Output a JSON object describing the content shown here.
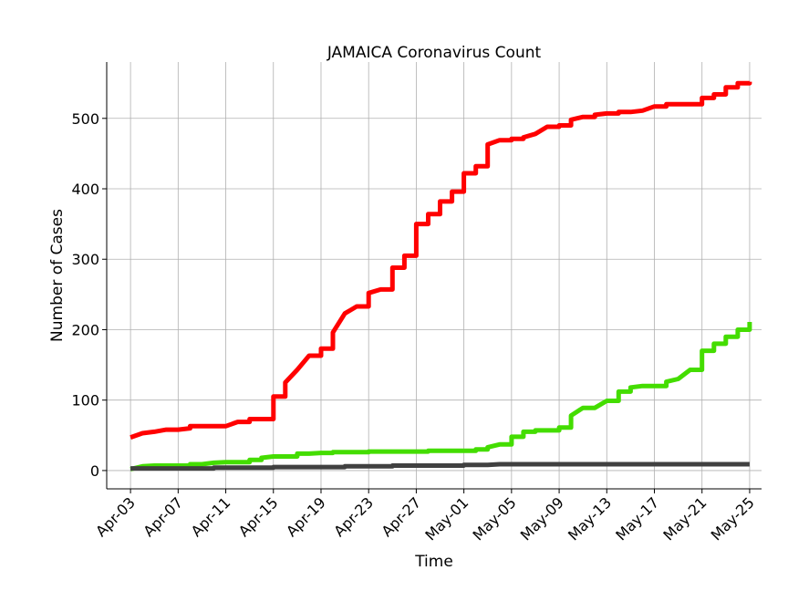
{
  "chart_data": {
    "type": "line",
    "title": "JAMAICA Coronavirus Count",
    "xlabel": "Time",
    "ylabel": "Number of Cases",
    "grid": true,
    "ylim": [
      -26,
      580
    ],
    "yticks": [
      0,
      100,
      200,
      300,
      400,
      500
    ],
    "xlim": [
      "2020-04-01",
      "2020-05-26"
    ],
    "xticks": [
      "2020-04-03",
      "2020-04-07",
      "2020-04-11",
      "2020-04-15",
      "2020-04-19",
      "2020-04-23",
      "2020-04-27",
      "2020-05-01",
      "2020-05-05",
      "2020-05-09",
      "2020-05-13",
      "2020-05-17",
      "2020-05-21",
      "2020-05-25"
    ],
    "xtick_labels": [
      "Apr-03",
      "Apr-07",
      "Apr-11",
      "Apr-15",
      "Apr-19",
      "Apr-23",
      "Apr-27",
      "May-01",
      "May-05",
      "May-09",
      "May-13",
      "May-17",
      "May-21",
      "May-25"
    ],
    "series": [
      {
        "color": "#ff0000",
        "points": [
          [
            "2020-04-03",
            47
          ],
          [
            "2020-04-04",
            53
          ],
          [
            "2020-04-05",
            55
          ],
          [
            "2020-04-06",
            58
          ],
          [
            "2020-04-07",
            58
          ],
          [
            "2020-04-08",
            60
          ],
          [
            "2020-04-08",
            63
          ],
          [
            "2020-04-09",
            63
          ],
          [
            "2020-04-10",
            63
          ],
          [
            "2020-04-11",
            63
          ],
          [
            "2020-04-12",
            69
          ],
          [
            "2020-04-13",
            69
          ],
          [
            "2020-04-13",
            73
          ],
          [
            "2020-04-14",
            73
          ],
          [
            "2020-04-15",
            73
          ],
          [
            "2020-04-15",
            105
          ],
          [
            "2020-04-16",
            105
          ],
          [
            "2020-04-16",
            125
          ],
          [
            "2020-04-17",
            143
          ],
          [
            "2020-04-18",
            163
          ],
          [
            "2020-04-19",
            163
          ],
          [
            "2020-04-19",
            173
          ],
          [
            "2020-04-20",
            173
          ],
          [
            "2020-04-20",
            196
          ],
          [
            "2020-04-21",
            223
          ],
          [
            "2020-04-22",
            233
          ],
          [
            "2020-04-23",
            233
          ],
          [
            "2020-04-23",
            252
          ],
          [
            "2020-04-24",
            257
          ],
          [
            "2020-04-25",
            257
          ],
          [
            "2020-04-25",
            288
          ],
          [
            "2020-04-26",
            288
          ],
          [
            "2020-04-26",
            305
          ],
          [
            "2020-04-27",
            305
          ],
          [
            "2020-04-27",
            350
          ],
          [
            "2020-04-28",
            350
          ],
          [
            "2020-04-28",
            364
          ],
          [
            "2020-04-29",
            364
          ],
          [
            "2020-04-29",
            382
          ],
          [
            "2020-04-30",
            382
          ],
          [
            "2020-04-30",
            396
          ],
          [
            "2020-05-01",
            396
          ],
          [
            "2020-05-01",
            422
          ],
          [
            "2020-05-02",
            422
          ],
          [
            "2020-05-02",
            432
          ],
          [
            "2020-05-03",
            432
          ],
          [
            "2020-05-03",
            463
          ],
          [
            "2020-05-04",
            469
          ],
          [
            "2020-05-05",
            469
          ],
          [
            "2020-05-05",
            471
          ],
          [
            "2020-05-06",
            471
          ],
          [
            "2020-05-06",
            473
          ],
          [
            "2020-05-07",
            478
          ],
          [
            "2020-05-08",
            488
          ],
          [
            "2020-05-09",
            488
          ],
          [
            "2020-05-09",
            490
          ],
          [
            "2020-05-10",
            490
          ],
          [
            "2020-05-10",
            498
          ],
          [
            "2020-05-11",
            502
          ],
          [
            "2020-05-12",
            502
          ],
          [
            "2020-05-12",
            505
          ],
          [
            "2020-05-13",
            507
          ],
          [
            "2020-05-14",
            507
          ],
          [
            "2020-05-14",
            509
          ],
          [
            "2020-05-15",
            509
          ],
          [
            "2020-05-16",
            511
          ],
          [
            "2020-05-17",
            517
          ],
          [
            "2020-05-18",
            517
          ],
          [
            "2020-05-18",
            520
          ],
          [
            "2020-05-19",
            520
          ],
          [
            "2020-05-20",
            520
          ],
          [
            "2020-05-21",
            520
          ],
          [
            "2020-05-21",
            529
          ],
          [
            "2020-05-22",
            529
          ],
          [
            "2020-05-22",
            534
          ],
          [
            "2020-05-23",
            534
          ],
          [
            "2020-05-23",
            544
          ],
          [
            "2020-05-24",
            544
          ],
          [
            "2020-05-24",
            550
          ],
          [
            "2020-05-25",
            550
          ],
          [
            "2020-05-25",
            552
          ]
        ]
      },
      {
        "color": "#44dd00",
        "points": [
          [
            "2020-04-03",
            2
          ],
          [
            "2020-04-04",
            6
          ],
          [
            "2020-04-05",
            7
          ],
          [
            "2020-04-06",
            7
          ],
          [
            "2020-04-07",
            7
          ],
          [
            "2020-04-08",
            7
          ],
          [
            "2020-04-08",
            9
          ],
          [
            "2020-04-09",
            9
          ],
          [
            "2020-04-10",
            11
          ],
          [
            "2020-04-11",
            12
          ],
          [
            "2020-04-12",
            12
          ],
          [
            "2020-04-13",
            12
          ],
          [
            "2020-04-13",
            15
          ],
          [
            "2020-04-14",
            15
          ],
          [
            "2020-04-14",
            18
          ],
          [
            "2020-04-15",
            20
          ],
          [
            "2020-04-16",
            20
          ],
          [
            "2020-04-17",
            20
          ],
          [
            "2020-04-17",
            24
          ],
          [
            "2020-04-18",
            24
          ],
          [
            "2020-04-19",
            25
          ],
          [
            "2020-04-20",
            25
          ],
          [
            "2020-04-20",
            26
          ],
          [
            "2020-04-21",
            26
          ],
          [
            "2020-04-22",
            26
          ],
          [
            "2020-04-23",
            26
          ],
          [
            "2020-04-23",
            27
          ],
          [
            "2020-04-24",
            27
          ],
          [
            "2020-04-25",
            27
          ],
          [
            "2020-04-26",
            27
          ],
          [
            "2020-04-27",
            27
          ],
          [
            "2020-04-28",
            27
          ],
          [
            "2020-04-28",
            28
          ],
          [
            "2020-04-29",
            28
          ],
          [
            "2020-04-30",
            28
          ],
          [
            "2020-05-01",
            28
          ],
          [
            "2020-05-02",
            28
          ],
          [
            "2020-05-02",
            30
          ],
          [
            "2020-05-03",
            30
          ],
          [
            "2020-05-03",
            33
          ],
          [
            "2020-05-04",
            37
          ],
          [
            "2020-05-05",
            37
          ],
          [
            "2020-05-05",
            48
          ],
          [
            "2020-05-06",
            48
          ],
          [
            "2020-05-06",
            55
          ],
          [
            "2020-05-07",
            55
          ],
          [
            "2020-05-07",
            57
          ],
          [
            "2020-05-08",
            57
          ],
          [
            "2020-05-09",
            57
          ],
          [
            "2020-05-09",
            61
          ],
          [
            "2020-05-10",
            61
          ],
          [
            "2020-05-10",
            78
          ],
          [
            "2020-05-11",
            89
          ],
          [
            "2020-05-12",
            89
          ],
          [
            "2020-05-13",
            99
          ],
          [
            "2020-05-14",
            99
          ],
          [
            "2020-05-14",
            112
          ],
          [
            "2020-05-15",
            112
          ],
          [
            "2020-05-15",
            118
          ],
          [
            "2020-05-16",
            120
          ],
          [
            "2020-05-17",
            120
          ],
          [
            "2020-05-18",
            120
          ],
          [
            "2020-05-18",
            126
          ],
          [
            "2020-05-19",
            130
          ],
          [
            "2020-05-20",
            143
          ],
          [
            "2020-05-21",
            143
          ],
          [
            "2020-05-21",
            170
          ],
          [
            "2020-05-22",
            170
          ],
          [
            "2020-05-22",
            180
          ],
          [
            "2020-05-23",
            180
          ],
          [
            "2020-05-23",
            190
          ],
          [
            "2020-05-24",
            190
          ],
          [
            "2020-05-24",
            200
          ],
          [
            "2020-05-25",
            200
          ],
          [
            "2020-05-25",
            211
          ]
        ]
      },
      {
        "color": "#404040",
        "points": [
          [
            "2020-04-03",
            3
          ],
          [
            "2020-04-04",
            3
          ],
          [
            "2020-04-05",
            3
          ],
          [
            "2020-04-06",
            3
          ],
          [
            "2020-04-07",
            3
          ],
          [
            "2020-04-08",
            3
          ],
          [
            "2020-04-09",
            3
          ],
          [
            "2020-04-10",
            3
          ],
          [
            "2020-04-10",
            4
          ],
          [
            "2020-04-11",
            4
          ],
          [
            "2020-04-13",
            4
          ],
          [
            "2020-04-15",
            4
          ],
          [
            "2020-04-15",
            5
          ],
          [
            "2020-04-17",
            5
          ],
          [
            "2020-04-19",
            5
          ],
          [
            "2020-04-21",
            5
          ],
          [
            "2020-04-21",
            6
          ],
          [
            "2020-04-23",
            6
          ],
          [
            "2020-04-25",
            6
          ],
          [
            "2020-04-25",
            7
          ],
          [
            "2020-04-27",
            7
          ],
          [
            "2020-04-29",
            7
          ],
          [
            "2020-05-01",
            7
          ],
          [
            "2020-05-01",
            8
          ],
          [
            "2020-05-03",
            8
          ],
          [
            "2020-05-04",
            9
          ],
          [
            "2020-05-09",
            9
          ],
          [
            "2020-05-13",
            9
          ],
          [
            "2020-05-17",
            9
          ],
          [
            "2020-05-21",
            9
          ],
          [
            "2020-05-25",
            9
          ]
        ]
      }
    ]
  }
}
